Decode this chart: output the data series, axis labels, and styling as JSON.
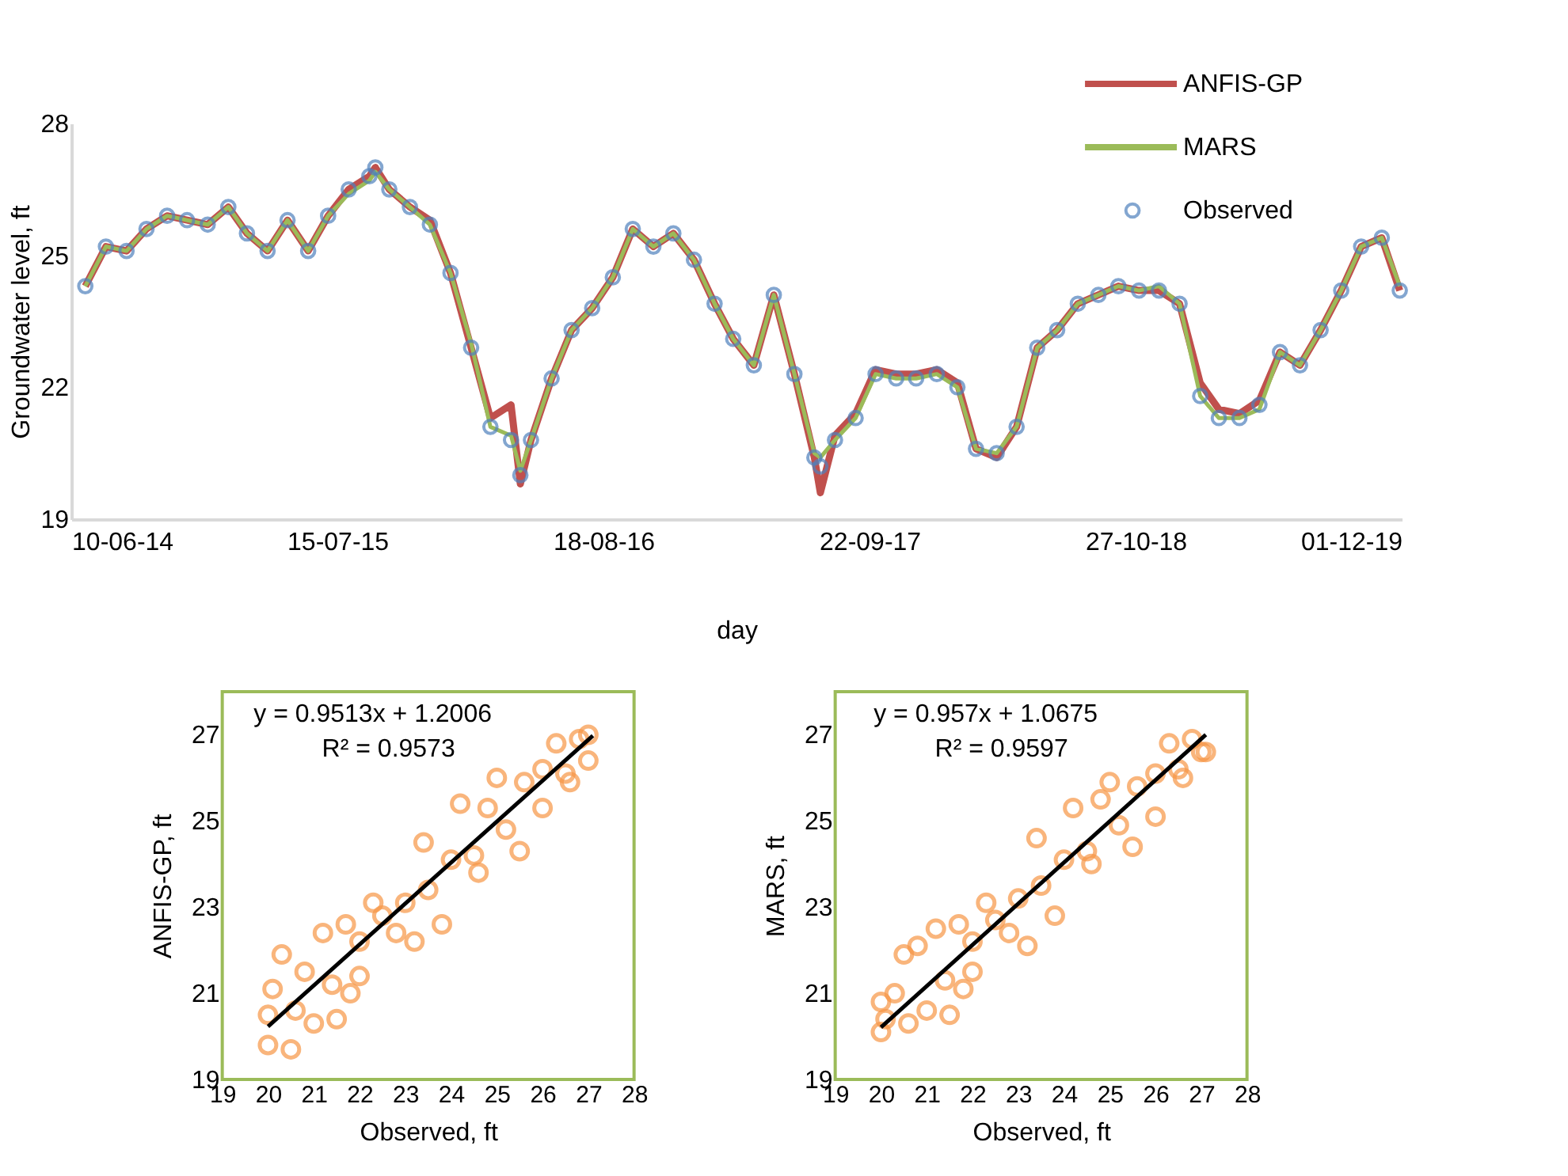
{
  "chart_data": [
    {
      "type": "line",
      "ylabel": "Groundwater level, ft",
      "xlabel": "day",
      "ylim": [
        19,
        28
      ],
      "yticks": [
        19,
        22,
        25,
        28
      ],
      "xlim": [
        "2014-06-10",
        "2019-12-01"
      ],
      "xticks": [
        {
          "value": "2014-06-10",
          "label": "10-06-14"
        },
        {
          "value": "2015-07-15",
          "label": "15-07-15"
        },
        {
          "value": "2016-08-18",
          "label": "18-08-16"
        },
        {
          "value": "2017-09-22",
          "label": "22-09-17"
        },
        {
          "value": "2018-10-27",
          "label": "27-10-18"
        },
        {
          "value": "2019-12-01",
          "label": "01-12-19"
        }
      ],
      "grid": false,
      "legend": "top right",
      "x": [
        "2014-07-01",
        "2014-08-01",
        "2014-09-01",
        "2014-10-01",
        "2014-11-01",
        "2014-12-01",
        "2015-01-01",
        "2015-02-01",
        "2015-03-01",
        "2015-04-01",
        "2015-05-01",
        "2015-06-01",
        "2015-07-01",
        "2015-08-01",
        "2015-09-01",
        "2015-09-10",
        "2015-10-01",
        "2015-11-01",
        "2015-12-01",
        "2016-01-01",
        "2016-02-01",
        "2016-03-01",
        "2016-04-01",
        "2016-04-15",
        "2016-05-01",
        "2016-06-01",
        "2016-07-01",
        "2016-08-01",
        "2016-09-01",
        "2016-10-01",
        "2016-11-01",
        "2016-12-01",
        "2017-01-01",
        "2017-02-01",
        "2017-03-01",
        "2017-04-01",
        "2017-05-01",
        "2017-06-01",
        "2017-07-01",
        "2017-07-10",
        "2017-08-01",
        "2017-09-01",
        "2017-10-01",
        "2017-11-01",
        "2017-12-01",
        "2018-01-01",
        "2018-02-01",
        "2018-03-01",
        "2018-04-01",
        "2018-05-01",
        "2018-06-01",
        "2018-07-01",
        "2018-08-01",
        "2018-09-01",
        "2018-10-01",
        "2018-11-01",
        "2018-12-01",
        "2019-01-01",
        "2019-02-01",
        "2019-03-01",
        "2019-04-01",
        "2019-05-01",
        "2019-06-01",
        "2019-07-01",
        "2019-08-01",
        "2019-09-01",
        "2019-10-01",
        "2019-11-01",
        "2019-11-28"
      ],
      "series": [
        {
          "name": "ANFIS-GP",
          "type": "line",
          "color": "#c0504d",
          "values": [
            24.3,
            25.2,
            25.1,
            25.6,
            25.9,
            25.8,
            25.7,
            26.1,
            25.5,
            25.1,
            25.8,
            25.1,
            25.9,
            26.5,
            26.8,
            27.0,
            26.5,
            26.1,
            25.8,
            24.6,
            22.9,
            21.3,
            21.6,
            19.8,
            20.8,
            22.2,
            23.3,
            23.8,
            24.5,
            25.6,
            25.2,
            25.5,
            24.9,
            23.9,
            23.1,
            22.5,
            24.1,
            22.3,
            20.4,
            19.6,
            20.9,
            21.4,
            22.4,
            22.3,
            22.3,
            22.4,
            22.1,
            20.6,
            20.4,
            21.1,
            22.9,
            23.3,
            23.9,
            24.1,
            24.3,
            24.2,
            24.2,
            23.9,
            22.1,
            21.5,
            21.4,
            21.7,
            22.8,
            22.5,
            23.3,
            24.2,
            25.2,
            25.4,
            24.2
          ]
        },
        {
          "name": "MARS",
          "type": "line",
          "color": "#9bbb59",
          "values": [
            24.3,
            25.2,
            25.1,
            25.6,
            25.9,
            25.8,
            25.7,
            26.1,
            25.5,
            25.1,
            25.8,
            25.1,
            25.9,
            26.4,
            26.7,
            26.9,
            26.5,
            26.1,
            25.7,
            24.6,
            23.0,
            21.1,
            20.9,
            20.1,
            20.8,
            22.2,
            23.3,
            23.8,
            24.5,
            25.6,
            25.2,
            25.5,
            24.9,
            23.9,
            23.1,
            22.5,
            24.1,
            22.3,
            20.5,
            20.4,
            20.8,
            21.3,
            22.3,
            22.2,
            22.2,
            22.3,
            22.0,
            20.6,
            20.5,
            21.1,
            22.9,
            23.3,
            23.9,
            24.1,
            24.3,
            24.2,
            24.3,
            23.9,
            21.8,
            21.3,
            21.3,
            21.5,
            22.8,
            22.5,
            23.3,
            24.2,
            25.2,
            25.4,
            24.3
          ]
        },
        {
          "name": "Observed",
          "type": "scatter",
          "marker": "circle",
          "color": "#4f81bd",
          "values": [
            24.3,
            25.2,
            25.1,
            25.6,
            25.9,
            25.8,
            25.7,
            26.1,
            25.5,
            25.1,
            25.8,
            25.1,
            25.9,
            26.5,
            26.8,
            27.0,
            26.5,
            26.1,
            25.7,
            24.6,
            22.9,
            21.1,
            20.8,
            20.0,
            20.8,
            22.2,
            23.3,
            23.8,
            24.5,
            25.6,
            25.2,
            25.5,
            24.9,
            23.9,
            23.1,
            22.5,
            24.1,
            22.3,
            20.4,
            20.2,
            20.8,
            21.3,
            22.3,
            22.2,
            22.2,
            22.3,
            22.0,
            20.6,
            20.5,
            21.1,
            22.9,
            23.3,
            23.9,
            24.1,
            24.3,
            24.2,
            24.2,
            23.9,
            21.8,
            21.3,
            21.3,
            21.6,
            22.8,
            22.5,
            23.3,
            24.2,
            25.2,
            25.4,
            24.2
          ]
        }
      ]
    },
    {
      "type": "scatter",
      "xlabel": "Observed, ft",
      "ylabel": "ANFIS-GP, ft",
      "xlim": [
        19,
        28
      ],
      "xticks": [
        19,
        20,
        21,
        22,
        23,
        24,
        25,
        26,
        27,
        28
      ],
      "ylim": [
        19,
        28
      ],
      "yticks": [
        19,
        21,
        23,
        25,
        27
      ],
      "grid": false,
      "annotations": [
        "y = 0.9513x + 1.2006",
        "R² = 0.9573"
      ],
      "series": [
        {
          "type": "scatter",
          "marker": "circle",
          "color": "#f79646",
          "x": [
            20,
            20,
            20.1,
            20.3,
            20.5,
            20.6,
            20.8,
            21,
            21.2,
            21.4,
            21.5,
            21.7,
            21.8,
            22,
            22,
            22.3,
            22.5,
            22.8,
            23,
            23.2,
            23.4,
            23.5,
            23.8,
            24,
            24.2,
            24.5,
            24.6,
            24.8,
            25,
            25.2,
            25.5,
            25.6,
            26,
            26,
            26.3,
            26.5,
            26.6,
            26.8,
            27,
            27
          ],
          "values": [
            19.8,
            20.5,
            21.1,
            21.9,
            19.7,
            20.6,
            21.5,
            20.3,
            22.4,
            21.2,
            20.4,
            22.6,
            21.0,
            21.4,
            22.2,
            23.1,
            22.8,
            22.4,
            23.1,
            22.2,
            24.5,
            23.4,
            22.6,
            24.1,
            25.4,
            24.2,
            23.8,
            25.3,
            26.0,
            24.8,
            24.3,
            25.9,
            26.2,
            25.3,
            26.8,
            26.1,
            25.9,
            26.9,
            26.4,
            27.0
          ]
        },
        {
          "type": "line",
          "color": "#000000",
          "x": [
            20,
            27.1
          ],
          "values": [
            20.23,
            26.98
          ]
        }
      ]
    },
    {
      "type": "scatter",
      "xlabel": "Observed, ft",
      "ylabel": "MARS, ft",
      "xlim": [
        19,
        28
      ],
      "xticks": [
        19,
        20,
        21,
        22,
        23,
        24,
        25,
        26,
        27,
        28
      ],
      "ylim": [
        19,
        28
      ],
      "yticks": [
        19,
        21,
        23,
        25,
        27
      ],
      "grid": false,
      "annotations": [
        "y = 0.957x + 1.0675",
        "R² = 0.9597"
      ],
      "series": [
        {
          "type": "scatter",
          "marker": "circle",
          "color": "#f79646",
          "x": [
            20,
            20,
            20.1,
            20.3,
            20.5,
            20.6,
            20.8,
            21,
            21.2,
            21.4,
            21.5,
            21.7,
            21.8,
            22,
            22,
            22.3,
            22.5,
            22.8,
            23,
            23.2,
            23.4,
            23.5,
            23.8,
            24,
            24.2,
            24.5,
            24.6,
            24.8,
            25,
            25.2,
            25.5,
            25.6,
            26,
            26,
            26.3,
            26.5,
            26.6,
            26.8,
            27,
            27.1
          ],
          "values": [
            20.1,
            20.8,
            20.4,
            21.0,
            21.9,
            20.3,
            22.1,
            20.6,
            22.5,
            21.3,
            20.5,
            22.6,
            21.1,
            21.5,
            22.2,
            23.1,
            22.7,
            22.4,
            23.2,
            22.1,
            24.6,
            23.5,
            22.8,
            24.1,
            25.3,
            24.3,
            24.0,
            25.5,
            25.9,
            24.9,
            24.4,
            25.8,
            26.1,
            25.1,
            26.8,
            26.2,
            26.0,
            26.9,
            26.6,
            26.6
          ]
        },
        {
          "type": "line",
          "color": "#000000",
          "x": [
            20,
            27.1
          ],
          "values": [
            20.21,
            27.0
          ]
        }
      ]
    }
  ]
}
